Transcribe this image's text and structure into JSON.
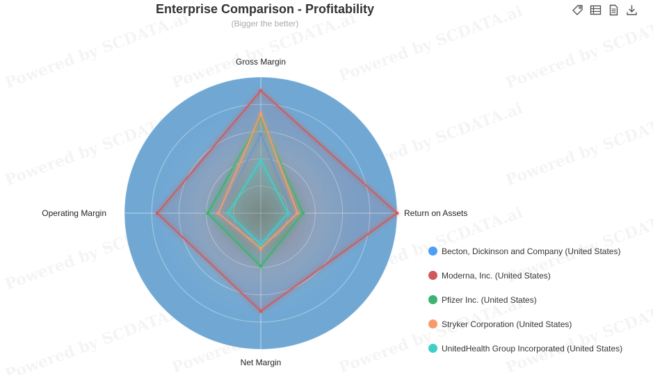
{
  "chart_data": {
    "type": "radar",
    "title": "Enterprise Comparison - Profitability",
    "subtitle": "(Bigger the better)",
    "indicators": [
      "Gross Margin",
      "Return on Assets",
      "Net Margin",
      "Operating Margin"
    ],
    "max": 100,
    "series": [
      {
        "name": "Becton, Dickinson and Company (United States)",
        "color": "#4e9ef7",
        "values": [
          58,
          24,
          22,
          30
        ]
      },
      {
        "name": "Moderna, Inc. (United States)",
        "color": "#d05a5a",
        "values": [
          90,
          100,
          72,
          76
        ]
      },
      {
        "name": "Pfizer Inc. (United States)",
        "color": "#3cb371",
        "values": [
          70,
          31,
          39,
          39
        ]
      },
      {
        "name": "Stryker Corporation (United States)",
        "color": "#f79a6b",
        "values": [
          73,
          27,
          26,
          31
        ]
      },
      {
        "name": "UnitedHealth Group Incorporated (United States)",
        "color": "#40cfc6",
        "values": [
          39,
          20,
          23,
          24
        ]
      }
    ],
    "legend_position": "bottom-right"
  },
  "toolbox": {
    "icons": [
      "tag-icon",
      "data-view-icon",
      "document-icon",
      "download-icon"
    ]
  },
  "watermark": "Powered by SCDATA.ai"
}
